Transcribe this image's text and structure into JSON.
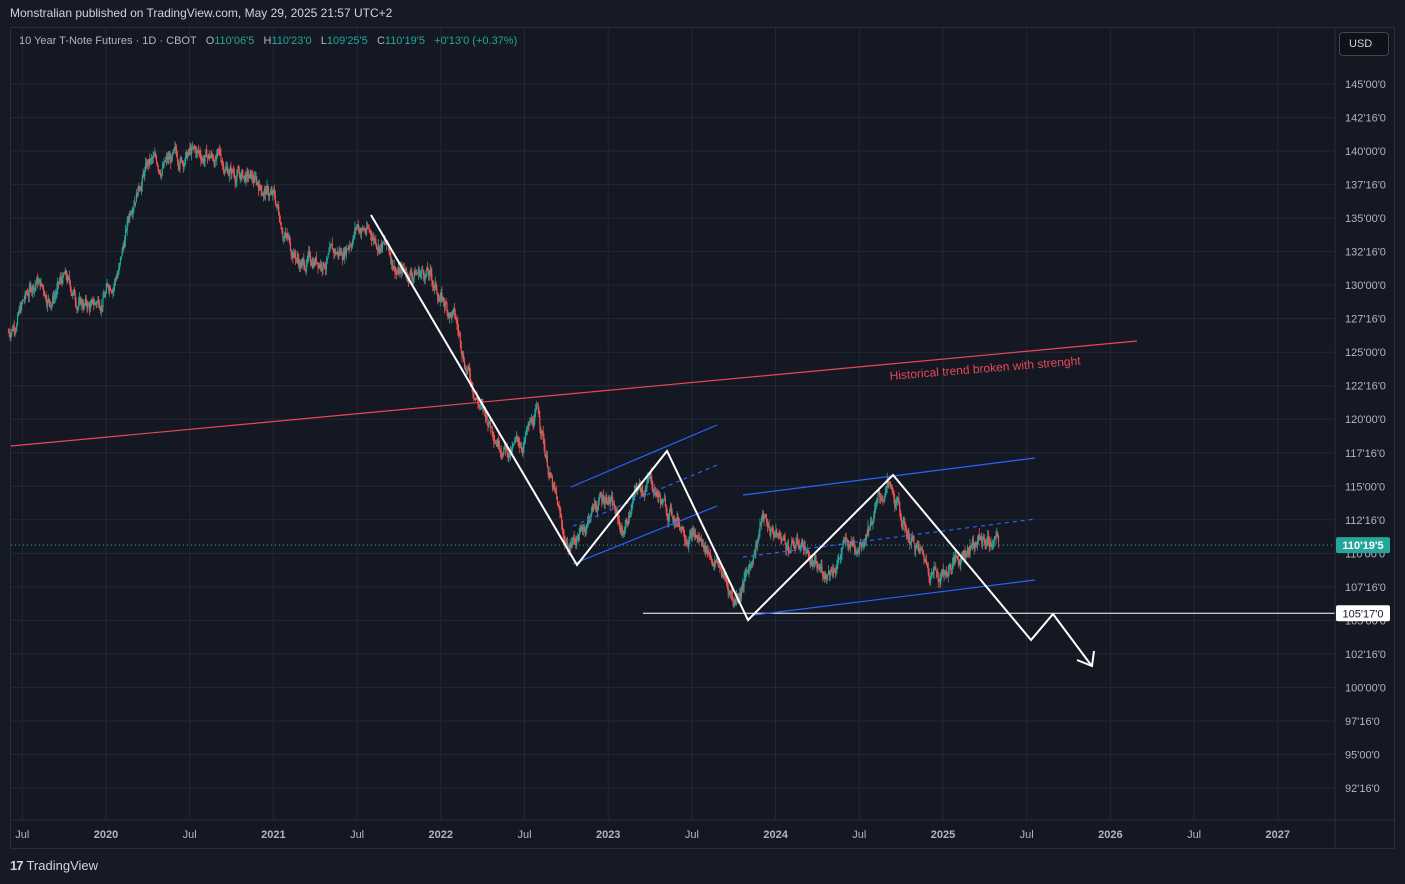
{
  "publisher_line": "Monstralian published on TradingView.com, May 29, 2025 21:57 UTC+2",
  "legend": {
    "symbol": "10 Year T-Note Futures · 1D · CBOT",
    "open_label": "O",
    "open": "110'06'5",
    "high_label": "H",
    "high": "110'23'0",
    "low_label": "L",
    "low": "109'25'5",
    "close_label": "C",
    "close": "110'19'5",
    "change": "+0'13'0 (+0.37%)"
  },
  "currency": "USD",
  "footer": {
    "brand": "TradingView",
    "logo_glyph": "17"
  },
  "colors": {
    "background": "#161a25",
    "grid": "#232734",
    "up": "#26a69a",
    "down": "#ef5350",
    "trendline": "#e84855",
    "channel": "#2962ff",
    "pattern": "#ffffff",
    "price_line": "#26a69a"
  },
  "chart_data": {
    "type": "candlestick",
    "symbol": "10 Year T-Note Futures",
    "interval": "1D",
    "grid": true,
    "y_ticks": [
      {
        "v": 145.0,
        "label": "145'00'0"
      },
      {
        "v": 142.5,
        "label": "142'16'0"
      },
      {
        "v": 140.0,
        "label": "140'00'0"
      },
      {
        "v": 137.5,
        "label": "137'16'0"
      },
      {
        "v": 135.0,
        "label": "135'00'0"
      },
      {
        "v": 132.5,
        "label": "132'16'0"
      },
      {
        "v": 130.0,
        "label": "130'00'0"
      },
      {
        "v": 127.5,
        "label": "127'16'0"
      },
      {
        "v": 125.0,
        "label": "125'00'0"
      },
      {
        "v": 122.5,
        "label": "122'16'0"
      },
      {
        "v": 120.0,
        "label": "120'00'0"
      },
      {
        "v": 117.5,
        "label": "117'16'0"
      },
      {
        "v": 115.0,
        "label": "115'00'0"
      },
      {
        "v": 112.5,
        "label": "112'16'0"
      },
      {
        "v": 110.0,
        "label": "110'00'0"
      },
      {
        "v": 107.5,
        "label": "107'16'0"
      },
      {
        "v": 105.0,
        "label": "105'00'0"
      },
      {
        "v": 102.5,
        "label": "102'16'0"
      },
      {
        "v": 100.0,
        "label": "100'00'0"
      },
      {
        "v": 97.5,
        "label": "97'16'0"
      },
      {
        "v": 95.0,
        "label": "95'00'0"
      },
      {
        "v": 92.5,
        "label": "92'16'0"
      }
    ],
    "x_ticks": [
      {
        "t": "2019-07",
        "label": "Jul"
      },
      {
        "t": "2020-01",
        "label": "2020"
      },
      {
        "t": "2020-07",
        "label": "Jul"
      },
      {
        "t": "2021-01",
        "label": "2021"
      },
      {
        "t": "2021-07",
        "label": "Jul"
      },
      {
        "t": "2022-01",
        "label": "2022"
      },
      {
        "t": "2022-07",
        "label": "Jul"
      },
      {
        "t": "2023-01",
        "label": "2023"
      },
      {
        "t": "2023-07",
        "label": "Jul"
      },
      {
        "t": "2024-01",
        "label": "2024"
      },
      {
        "t": "2024-07",
        "label": "Jul"
      },
      {
        "t": "2025-01",
        "label": "2025"
      },
      {
        "t": "2025-07",
        "label": "Jul"
      },
      {
        "t": "2026-01",
        "label": "2026"
      },
      {
        "t": "2026-07",
        "label": "Jul"
      },
      {
        "t": "2027-01",
        "label": "2027"
      }
    ],
    "price_path": [
      [
        "2019-06",
        126.5
      ],
      [
        "2019-08",
        130.5
      ],
      [
        "2019-09",
        129
      ],
      [
        "2019-10",
        130.5
      ],
      [
        "2019-11",
        128.8
      ],
      [
        "2019-12",
        128.3
      ],
      [
        "2020-01",
        129.5
      ],
      [
        "2020-02",
        131.5
      ],
      [
        "2020-03",
        137
      ],
      [
        "2020-04",
        139
      ],
      [
        "2020-05",
        139
      ],
      [
        "2020-06",
        139.3
      ],
      [
        "2020-07",
        139.8
      ],
      [
        "2020-08",
        139.6
      ],
      [
        "2020-09",
        139.5
      ],
      [
        "2020-10",
        138.5
      ],
      [
        "2020-11",
        138
      ],
      [
        "2020-12",
        137.5
      ],
      [
        "2021-01",
        136.5
      ],
      [
        "2021-02",
        133.5
      ],
      [
        "2021-03",
        131.5
      ],
      [
        "2021-04",
        132
      ],
      [
        "2021-05",
        132
      ],
      [
        "2021-06",
        132.5
      ],
      [
        "2021-07",
        134.5
      ],
      [
        "2021-08",
        133.8
      ],
      [
        "2021-09",
        133
      ],
      [
        "2021-10",
        131
      ],
      [
        "2021-11",
        131
      ],
      [
        "2021-12",
        131
      ],
      [
        "2022-01",
        129
      ],
      [
        "2022-02",
        127.5
      ],
      [
        "2022-03",
        123.5
      ],
      [
        "2022-04",
        120.5
      ],
      [
        "2022-05",
        119
      ],
      [
        "2022-06",
        117.5
      ],
      [
        "2022-07",
        118.5
      ],
      [
        "2022-08",
        120.5
      ],
      [
        "2022-09",
        115
      ],
      [
        "2022-10",
        110.5
      ],
      [
        "2022-11",
        111.5
      ],
      [
        "2022-12",
        113.5
      ],
      [
        "2023-01",
        114.5
      ],
      [
        "2023-02",
        111.5
      ],
      [
        "2023-03",
        114.5
      ],
      [
        "2023-04",
        115.5
      ],
      [
        "2023-05",
        113.5
      ],
      [
        "2023-06",
        112.5
      ],
      [
        "2023-07",
        111.5
      ],
      [
        "2023-08",
        110.5
      ],
      [
        "2023-09",
        109
      ],
      [
        "2023-10",
        106.5
      ],
      [
        "2023-11",
        108.5
      ],
      [
        "2023-12",
        112.5
      ],
      [
        "2024-01",
        111.5
      ],
      [
        "2024-02",
        110.5
      ],
      [
        "2024-03",
        110.8
      ],
      [
        "2024-04",
        108.5
      ],
      [
        "2024-05",
        109
      ],
      [
        "2024-06",
        110.5
      ],
      [
        "2024-07",
        111
      ],
      [
        "2024-08",
        113
      ],
      [
        "2024-09",
        115
      ],
      [
        "2024-10",
        112.5
      ],
      [
        "2024-11",
        110.5
      ],
      [
        "2024-12",
        109
      ],
      [
        "2025-01",
        108.5
      ],
      [
        "2025-02",
        109.5
      ],
      [
        "2025-03",
        110.8
      ],
      [
        "2025-04",
        111
      ],
      [
        "2025-05",
        110.6
      ]
    ],
    "last_price": {
      "v": 110.61,
      "label": "110'19'5"
    },
    "level_line": {
      "v": 105.53,
      "label": "105'17'0"
    },
    "annotations": [
      {
        "type": "text",
        "text": "Historical trend broken with strenght",
        "color": "#e84855"
      }
    ]
  }
}
